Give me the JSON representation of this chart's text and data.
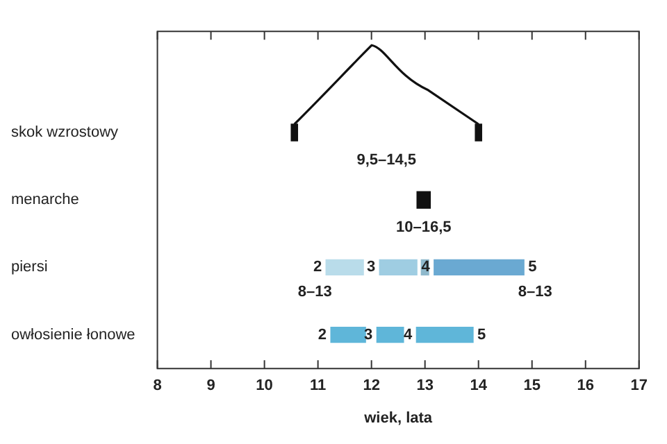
{
  "chart_data": {
    "type": "bar",
    "orientation": "horizontal",
    "xlabel": "wiek, lata",
    "categories": [
      null,
      "skok wzrostowy",
      "menarche",
      "piersi",
      "owłosienie łonowe"
    ],
    "series": [
      {
        "color": "#111111",
        "base": [
          null,
          10.5,
          12.85,
          null,
          null
        ],
        "values": [
          null,
          0.12,
          0.25,
          null,
          null
        ]
      },
      {
        "color": "#111111",
        "base": [
          null,
          13.94,
          null,
          null,
          null
        ],
        "values": [
          null,
          0.12,
          null,
          null,
          null
        ]
      },
      {
        "colors": [
          null,
          null,
          null,
          "#b9dcea",
          "#5fb6d9"
        ],
        "base": [
          null,
          null,
          null,
          11.15,
          11.24
        ],
        "values": [
          null,
          null,
          null,
          0.7,
          0.65
        ]
      },
      {
        "colors": [
          null,
          null,
          null,
          "#9fcde2",
          "#5fb6d9"
        ],
        "base": [
          null,
          null,
          null,
          12.15,
          12.1
        ],
        "values": [
          null,
          null,
          null,
          0.7,
          0.5
        ]
      },
      {
        "colors": [
          null,
          null,
          null,
          "#8fb9cc",
          null
        ],
        "base": [
          null,
          null,
          null,
          12.93,
          null
        ],
        "values": [
          null,
          null,
          null,
          0.14,
          null
        ]
      },
      {
        "colors": [
          null,
          null,
          null,
          "#6aa9d2",
          "#5fb6d9"
        ],
        "base": [
          null,
          null,
          null,
          13.17,
          12.84
        ],
        "values": [
          null,
          null,
          null,
          1.68,
          1.06
        ]
      }
    ],
    "xlim": [
      8,
      17
    ],
    "xticks": [
      8,
      9,
      10,
      11,
      12,
      13,
      14,
      15,
      16,
      17
    ],
    "annotations": [
      "9,5–14,5",
      "10–16,5",
      {
        "text": "2",
        "x": 11.15,
        "y": "piersi"
      },
      {
        "text": "3",
        "x": 12.15,
        "y": "piersi"
      },
      {
        "text": "4",
        "x": 13.17,
        "y": "piersi"
      },
      {
        "text": "5",
        "x": 14.85,
        "y": "piersi"
      },
      {
        "text": "8–13",
        "x": 11.15,
        "y": "piersi"
      },
      {
        "text": "8–13",
        "x": 14.85,
        "y": "piersi"
      },
      {
        "text": "2",
        "x": 11.24,
        "y": "owłosienie łonowe"
      },
      {
        "text": "3",
        "x": 12.1,
        "y": "owłosienie łonowe"
      },
      {
        "text": "4",
        "x": 12.84,
        "y": "owłosienie łonowe"
      },
      {
        "text": "5",
        "x": 13.9,
        "y": "owłosienie łonowe"
      }
    ],
    "grid": false,
    "legend": false
  }
}
